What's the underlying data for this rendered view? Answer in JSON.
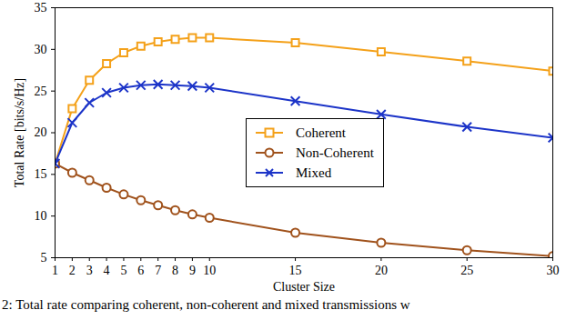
{
  "chart_data": {
    "type": "line",
    "caption": "2: Total rate comparing coherent, non-coherent and mixed transmissions w",
    "x_label": "Cluster Size",
    "y_label": "Total Rate [bits/s/Hz]",
    "x": [
      1,
      2,
      3,
      4,
      5,
      6,
      7,
      8,
      9,
      10,
      15,
      20,
      25,
      30
    ],
    "xlim": [
      1,
      30
    ],
    "xticks": [
      1,
      2,
      3,
      4,
      5,
      6,
      7,
      8,
      9,
      10,
      15,
      20,
      25,
      30
    ],
    "ylim": [
      5,
      35
    ],
    "yticks": [
      5,
      10,
      15,
      20,
      25,
      30,
      35
    ],
    "grid": false,
    "legend": "center",
    "series": [
      {
        "name": "Coherent",
        "color": "#f4a11a",
        "marker": "square",
        "line_style": "solid",
        "values": [
          16.3,
          22.9,
          26.3,
          28.3,
          29.6,
          30.4,
          30.9,
          31.2,
          31.4,
          31.4,
          30.8,
          29.7,
          28.6,
          27.4
        ]
      },
      {
        "name": "Non-Coherent",
        "color": "#a0521c",
        "marker": "circle",
        "line_style": "solid",
        "values": [
          16.3,
          15.2,
          14.3,
          13.4,
          12.6,
          11.9,
          11.3,
          10.7,
          10.2,
          9.8,
          8.0,
          6.8,
          5.9,
          5.2
        ]
      },
      {
        "name": "Mixed",
        "color": "#1c34c8",
        "marker": "cross",
        "line_style": "solid",
        "values": [
          16.3,
          21.2,
          23.6,
          24.8,
          25.4,
          25.7,
          25.8,
          25.7,
          25.6,
          25.4,
          23.8,
          22.2,
          20.7,
          19.4
        ]
      }
    ]
  }
}
